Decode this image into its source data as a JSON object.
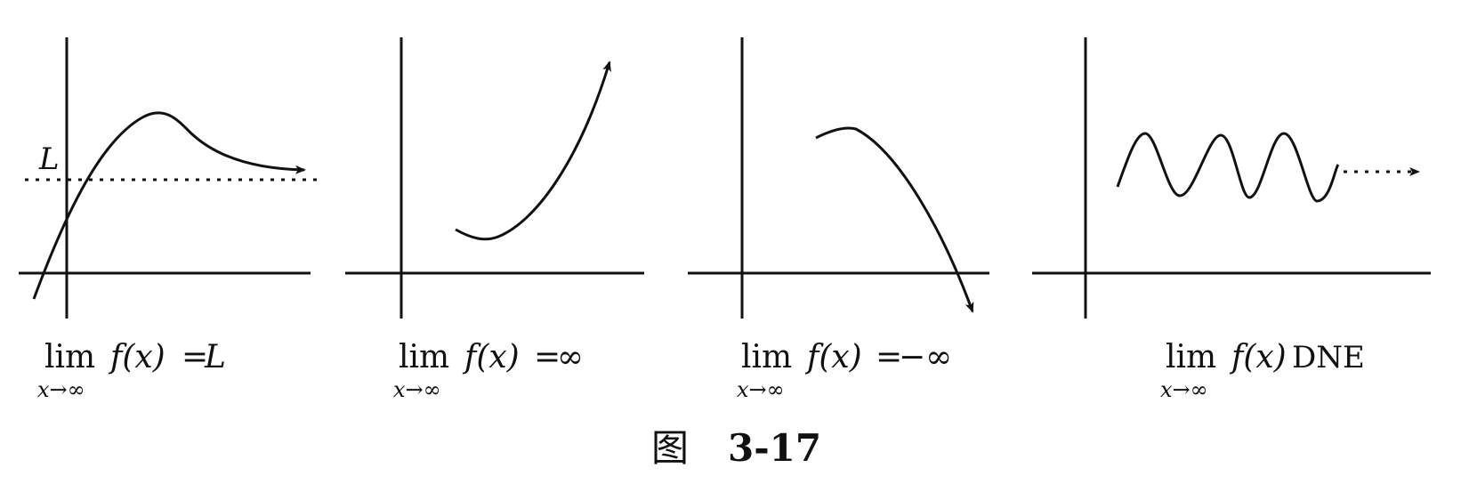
{
  "figure": {
    "caption_prefix": "图",
    "caption_number": "3-17"
  },
  "panels": [
    {
      "id": "limit-finite",
      "axis_label": "L",
      "formula": {
        "lim": "lim",
        "sub": "x→∞",
        "fx": "f(x)",
        "rel": "=",
        "result": "L",
        "result_italic": true
      }
    },
    {
      "id": "limit-infinity",
      "axis_label": "",
      "formula": {
        "lim": "lim",
        "sub": "x→∞",
        "fx": "f(x)",
        "rel": "=",
        "result": "∞",
        "result_italic": false
      }
    },
    {
      "id": "limit-neg-infinity",
      "axis_label": "",
      "formula": {
        "lim": "lim",
        "sub": "x→∞",
        "fx": "f(x)",
        "rel": "=",
        "result": "−∞",
        "result_italic": false
      }
    },
    {
      "id": "limit-dne",
      "axis_label": "",
      "formula": {
        "lim": "lim",
        "sub": "x→∞",
        "fx": "f(x)",
        "rel": "",
        "result": "DNE",
        "result_italic": false
      }
    }
  ],
  "colors": {
    "ink": "#111111",
    "background": "#ffffff"
  }
}
